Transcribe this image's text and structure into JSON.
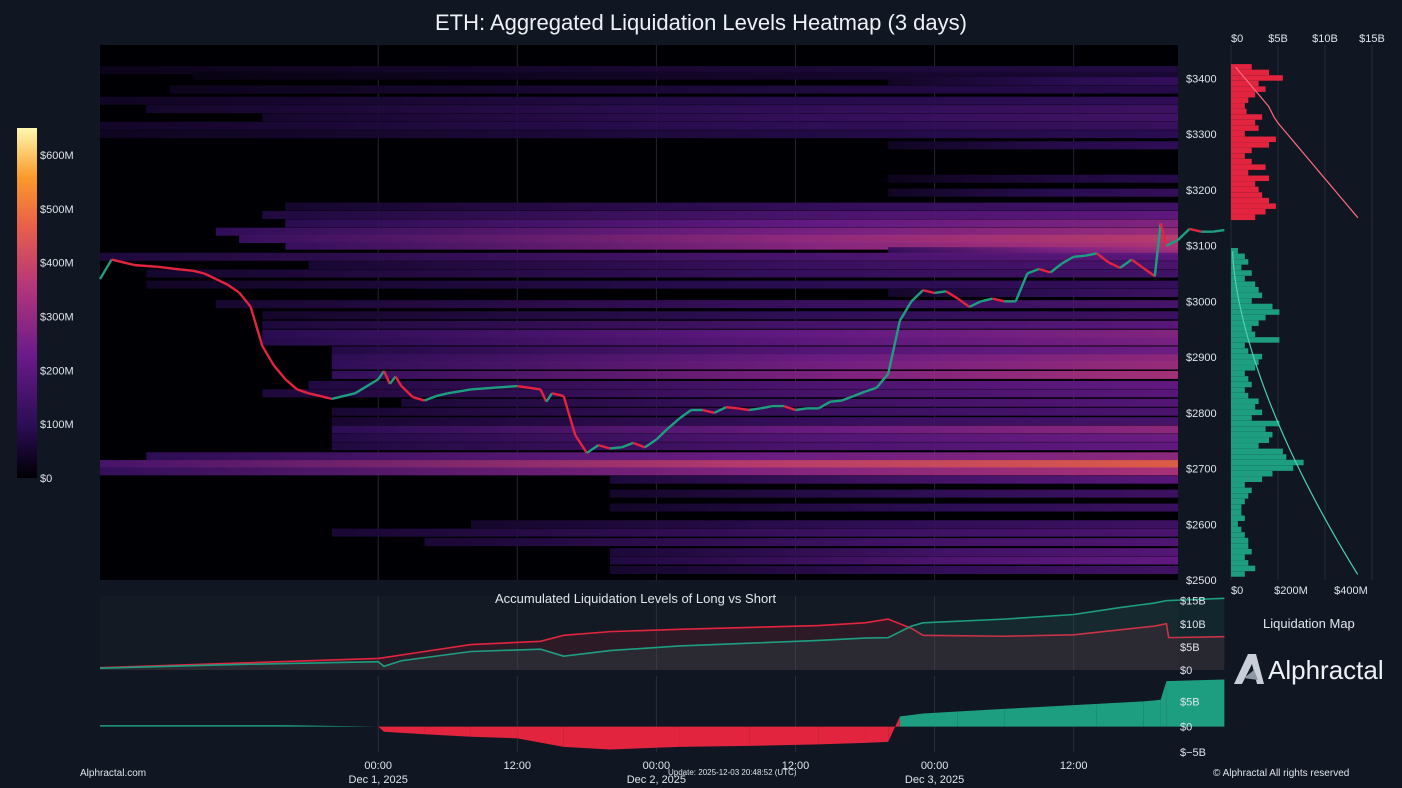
{
  "title": "ETH: Aggregated Liquidation Levels Heatmap (3 days)",
  "colorbar": {
    "ticks": [
      "$600M",
      "$500M",
      "$400M",
      "$300M",
      "$200M",
      "$100M",
      "$0"
    ],
    "max": 650
  },
  "side_panel": {
    "top_ticks": [
      "$0",
      "$5B",
      "$10B",
      "$15B"
    ],
    "bottom_ticks": [
      "$0",
      "$200M",
      "$400M"
    ],
    "label": "Liquidation Map"
  },
  "accumulated_panel": {
    "title": "Accumulated Liquidation Levels of Long vs Short",
    "y_ticks": [
      "$15B",
      "$10B",
      "$5B",
      "$0"
    ]
  },
  "delta_panel": {
    "y_ticks": [
      "$5B",
      "$0",
      "$−5B"
    ]
  },
  "x_axis": {
    "ticks": [
      {
        "time": "00:00",
        "date": "Dec 1, 2025"
      },
      {
        "time": "12:00",
        "date": ""
      },
      {
        "time": "00:00",
        "date": "Dec 2, 2025"
      },
      {
        "time": "12:00",
        "date": ""
      },
      {
        "time": "00:00",
        "date": "Dec 3, 2025"
      },
      {
        "time": "12:00",
        "date": ""
      }
    ]
  },
  "footer": {
    "left": "Alphractal.com",
    "update": "Update: 2025-12-03 20:48:52 (UTC)",
    "right": "© Alphractal All rights reserved"
  },
  "brand": {
    "name": "Alphractal"
  },
  "colors": {
    "long": "#1e9e80",
    "short": "#e3243f",
    "bg": "#111722"
  },
  "chart_data": [
    {
      "type": "heatmap",
      "title": "ETH: Aggregated Liquidation Levels Heatmap (3 days)",
      "x_range_hours": [
        -24,
        69
      ],
      "ylim": [
        2500,
        3460
      ],
      "y_ticks": [
        "$3400",
        "$3300",
        "$3200",
        "$3100",
        "$3000",
        "$2900",
        "$2800",
        "$2700",
        "$2600",
        "$2500"
      ],
      "price_path": [
        [
          -24,
          3040
        ],
        [
          -23,
          3075
        ],
        [
          -21,
          3065
        ],
        [
          -19,
          3062
        ],
        [
          -17,
          3057
        ],
        [
          -16,
          3055
        ],
        [
          -15,
          3050
        ],
        [
          -14,
          3040
        ],
        [
          -13,
          3030
        ],
        [
          -12,
          3016
        ],
        [
          -11,
          2990
        ],
        [
          -10,
          2920
        ],
        [
          -9,
          2885
        ],
        [
          -8,
          2860
        ],
        [
          -7,
          2842
        ],
        [
          -6,
          2835
        ],
        [
          -5,
          2830
        ],
        [
          -4,
          2825
        ],
        [
          -2,
          2835
        ],
        [
          0,
          2860
        ],
        [
          0.5,
          2875
        ],
        [
          1,
          2852
        ],
        [
          1.5,
          2865
        ],
        [
          2,
          2848
        ],
        [
          3,
          2828
        ],
        [
          4,
          2822
        ],
        [
          5,
          2830
        ],
        [
          6,
          2835
        ],
        [
          8,
          2842
        ],
        [
          10,
          2845
        ],
        [
          12,
          2848
        ],
        [
          14,
          2842
        ],
        [
          14.5,
          2820
        ],
        [
          15,
          2835
        ],
        [
          16,
          2830
        ],
        [
          17,
          2760
        ],
        [
          18,
          2728
        ],
        [
          19,
          2742
        ],
        [
          20,
          2736
        ],
        [
          21,
          2738
        ],
        [
          22,
          2746
        ],
        [
          23,
          2738
        ],
        [
          24,
          2752
        ],
        [
          25,
          2772
        ],
        [
          26,
          2790
        ],
        [
          27,
          2805
        ],
        [
          28,
          2805
        ],
        [
          29,
          2800
        ],
        [
          30,
          2810
        ],
        [
          31,
          2808
        ],
        [
          32,
          2805
        ],
        [
          33,
          2808
        ],
        [
          34,
          2812
        ],
        [
          35,
          2812
        ],
        [
          36,
          2805
        ],
        [
          37,
          2808
        ],
        [
          38,
          2808
        ],
        [
          39,
          2820
        ],
        [
          40,
          2822
        ],
        [
          41,
          2830
        ],
        [
          42,
          2838
        ],
        [
          43,
          2845
        ],
        [
          44,
          2870
        ],
        [
          45,
          2965
        ],
        [
          46,
          3000
        ],
        [
          47,
          3020
        ],
        [
          48,
          3015
        ],
        [
          49,
          3018
        ],
        [
          50,
          3005
        ],
        [
          51,
          2990
        ],
        [
          52,
          3000
        ],
        [
          53,
          3005
        ],
        [
          54,
          3000
        ],
        [
          55,
          3000
        ],
        [
          56,
          3050
        ],
        [
          57,
          3058
        ],
        [
          58,
          3052
        ],
        [
          59,
          3068
        ],
        [
          60,
          3080
        ],
        [
          61,
          3082
        ],
        [
          62,
          3086
        ],
        [
          63,
          3070
        ],
        [
          64,
          3060
        ],
        [
          65,
          3075
        ],
        [
          66,
          3060
        ],
        [
          67,
          3045
        ],
        [
          67.5,
          3140
        ],
        [
          68,
          3100
        ],
        [
          69,
          3110
        ],
        [
          70,
          3130
        ],
        [
          71,
          3125
        ],
        [
          72,
          3125
        ],
        [
          73,
          3128
        ]
      ],
      "level_bands": [
        {
          "price": 3415,
          "start": -24,
          "intensity": 80
        },
        {
          "price": 3405,
          "start": -16,
          "intensity": 60
        },
        {
          "price": 3395,
          "start": 44,
          "intensity": 120
        },
        {
          "price": 3380,
          "start": -18,
          "intensity": 90
        },
        {
          "price": 3360,
          "start": -24,
          "intensity": 110
        },
        {
          "price": 3345,
          "start": -20,
          "intensity": 140
        },
        {
          "price": 3330,
          "start": -10,
          "intensity": 150
        },
        {
          "price": 3315,
          "start": -24,
          "intensity": 130
        },
        {
          "price": 3300,
          "start": -24,
          "intensity": 100
        },
        {
          "price": 3280,
          "start": 44,
          "intensity": 110
        },
        {
          "price": 3220,
          "start": 44,
          "intensity": 90
        },
        {
          "price": 3195,
          "start": 44,
          "intensity": 120
        },
        {
          "price": 3170,
          "start": -8,
          "intensity": 150
        },
        {
          "price": 3155,
          "start": -10,
          "intensity": 210
        },
        {
          "price": 3140,
          "start": -8,
          "intensity": 280
        },
        {
          "price": 3125,
          "start": -14,
          "intensity": 320
        },
        {
          "price": 3112,
          "start": -12,
          "intensity": 380
        },
        {
          "price": 3100,
          "start": -8,
          "intensity": 360
        },
        {
          "price": 3090,
          "start": 44,
          "intensity": 330
        },
        {
          "price": 3080,
          "start": -24,
          "intensity": 200
        },
        {
          "price": 3065,
          "start": -6,
          "intensity": 170
        },
        {
          "price": 3050,
          "start": -20,
          "intensity": 150
        },
        {
          "price": 3030,
          "start": -20,
          "intensity": 120
        },
        {
          "price": 3015,
          "start": 44,
          "intensity": 140
        },
        {
          "price": 2995,
          "start": -14,
          "intensity": 160
        },
        {
          "price": 2975,
          "start": -10,
          "intensity": 140
        },
        {
          "price": 2958,
          "start": -10,
          "intensity": 200
        },
        {
          "price": 2942,
          "start": -10,
          "intensity": 280
        },
        {
          "price": 2928,
          "start": -10,
          "intensity": 260
        },
        {
          "price": 2912,
          "start": -4,
          "intensity": 240
        },
        {
          "price": 2898,
          "start": -4,
          "intensity": 300
        },
        {
          "price": 2885,
          "start": -4,
          "intensity": 320
        },
        {
          "price": 2868,
          "start": -4,
          "intensity": 340
        },
        {
          "price": 2850,
          "start": -6,
          "intensity": 220
        },
        {
          "price": 2835,
          "start": -10,
          "intensity": 200
        },
        {
          "price": 2818,
          "start": 2,
          "intensity": 190
        },
        {
          "price": 2802,
          "start": -4,
          "intensity": 170
        },
        {
          "price": 2785,
          "start": -4,
          "intensity": 160
        },
        {
          "price": 2770,
          "start": -4,
          "intensity": 300
        },
        {
          "price": 2755,
          "start": -4,
          "intensity": 240
        },
        {
          "price": 2740,
          "start": -4,
          "intensity": 220
        },
        {
          "price": 2722,
          "start": -20,
          "intensity": 300
        },
        {
          "price": 2708,
          "start": -24,
          "intensity": 470
        },
        {
          "price": 2695,
          "start": -24,
          "intensity": 350
        },
        {
          "price": 2680,
          "start": 20,
          "intensity": 200
        },
        {
          "price": 2655,
          "start": 20,
          "intensity": 140
        },
        {
          "price": 2630,
          "start": 20,
          "intensity": 130
        },
        {
          "price": 2600,
          "start": 8,
          "intensity": 140
        },
        {
          "price": 2585,
          "start": -4,
          "intensity": 170
        },
        {
          "price": 2568,
          "start": 4,
          "intensity": 180
        },
        {
          "price": 2550,
          "start": 20,
          "intensity": 190
        },
        {
          "price": 2535,
          "start": 20,
          "intensity": 220
        },
        {
          "price": 2518,
          "start": 20,
          "intensity": 150
        }
      ]
    },
    {
      "type": "bar",
      "title": "Liquidation Map",
      "orientation": "horizontal",
      "price_levels": [
        3420,
        3410,
        3400,
        3390,
        3380,
        3370,
        3360,
        3350,
        3340,
        3330,
        3320,
        3310,
        3300,
        3290,
        3280,
        3270,
        3260,
        3250,
        3240,
        3230,
        3220,
        3210,
        3200,
        3190,
        3180,
        3170,
        3160,
        3150,
        3090,
        3080,
        3070,
        3060,
        3050,
        3040,
        3030,
        3020,
        3010,
        3000,
        2990,
        2980,
        2970,
        2960,
        2950,
        2940,
        2930,
        2920,
        2910,
        2900,
        2890,
        2880,
        2870,
        2860,
        2850,
        2840,
        2830,
        2820,
        2810,
        2800,
        2790,
        2780,
        2770,
        2760,
        2750,
        2740,
        2730,
        2720,
        2710,
        2700,
        2690,
        2680,
        2670,
        2660,
        2650,
        2640,
        2630,
        2620,
        2610,
        2600,
        2590,
        2580,
        2570,
        2560,
        2550,
        2540,
        2530,
        2520,
        2510
      ],
      "values_millions": [
        60,
        110,
        150,
        80,
        100,
        70,
        50,
        40,
        45,
        90,
        70,
        80,
        40,
        130,
        110,
        60,
        40,
        60,
        100,
        50,
        110,
        70,
        80,
        90,
        110,
        130,
        100,
        70,
        20,
        40,
        50,
        30,
        60,
        40,
        70,
        80,
        90,
        60,
        120,
        140,
        100,
        80,
        60,
        70,
        140,
        40,
        50,
        90,
        80,
        70,
        40,
        50,
        60,
        40,
        50,
        80,
        70,
        90,
        60,
        140,
        100,
        120,
        110,
        80,
        150,
        160,
        210,
        180,
        120,
        90,
        40,
        60,
        50,
        40,
        30,
        30,
        40,
        20,
        30,
        40,
        50,
        50,
        60,
        40,
        50,
        70,
        40
      ],
      "cumulative_billions": [
        0.5,
        1,
        1.5,
        2,
        2.5,
        3,
        3.5,
        4,
        4.3,
        4.6,
        5,
        5.5,
        6,
        6.5,
        7,
        7.5,
        8,
        8.5,
        9,
        9.5,
        10,
        10.5,
        11,
        11.5,
        12,
        12.5,
        13,
        13.5
      ],
      "color_long": "#1e9e80",
      "color_short": "#e3243f"
    },
    {
      "type": "line",
      "title": "Accumulated Liquidation Levels of Long vs Short",
      "ylim": [
        0,
        16
      ],
      "series": [
        {
          "color": "#e3243f",
          "points": [
            [
              -24,
              0.5
            ],
            [
              -12,
              1.5
            ],
            [
              0,
              2.5
            ],
            [
              4,
              4
            ],
            [
              8,
              5.5
            ],
            [
              14,
              6.2
            ],
            [
              16,
              7.5
            ],
            [
              20,
              8.3
            ],
            [
              26,
              8.8
            ],
            [
              32,
              9.2
            ],
            [
              38,
              9.6
            ],
            [
              42,
              10.2
            ],
            [
              44,
              11
            ],
            [
              46,
              9
            ],
            [
              47,
              7.5
            ],
            [
              54,
              7.3
            ],
            [
              60,
              7.6
            ],
            [
              67,
              9.5
            ],
            [
              68,
              10
            ],
            [
              68.2,
              7
            ],
            [
              73,
              7.2
            ]
          ]
        },
        {
          "color": "#1e9e80",
          "points": [
            [
              -24,
              0.4
            ],
            [
              -12,
              1.2
            ],
            [
              0,
              1.8
            ],
            [
              0.5,
              0.8
            ],
            [
              2,
              2
            ],
            [
              8,
              4
            ],
            [
              14,
              4.5
            ],
            [
              16,
              3
            ],
            [
              20,
              4.2
            ],
            [
              26,
              5.2
            ],
            [
              32,
              5.8
            ],
            [
              38,
              6.4
            ],
            [
              42,
              6.9
            ],
            [
              44,
              7
            ],
            [
              46,
              9.5
            ],
            [
              47,
              10.2
            ],
            [
              54,
              11
            ],
            [
              60,
              12
            ],
            [
              64,
              13.5
            ],
            [
              67,
              14.5
            ],
            [
              68,
              15
            ],
            [
              73,
              15.5
            ]
          ]
        }
      ]
    },
    {
      "type": "area",
      "title": "",
      "ylim": [
        -5,
        10
      ],
      "points": [
        [
          -24,
          0.3
        ],
        [
          -8,
          0.3
        ],
        [
          0,
          0
        ],
        [
          0.5,
          -1
        ],
        [
          4,
          -1.5
        ],
        [
          8,
          -2
        ],
        [
          12,
          -2.3
        ],
        [
          16,
          -4
        ],
        [
          20,
          -4.5
        ],
        [
          26,
          -4
        ],
        [
          32,
          -3.8
        ],
        [
          38,
          -3.5
        ],
        [
          42,
          -3.2
        ],
        [
          44,
          -3
        ],
        [
          45,
          2
        ],
        [
          47,
          2.6
        ],
        [
          50,
          3
        ],
        [
          54,
          3.5
        ],
        [
          58,
          4
        ],
        [
          62,
          4.5
        ],
        [
          66,
          5
        ],
        [
          67.5,
          5.3
        ],
        [
          68,
          9
        ],
        [
          73,
          9.3
        ]
      ],
      "color_positive": "#1e9e80",
      "color_negative": "#e3243f"
    }
  ]
}
